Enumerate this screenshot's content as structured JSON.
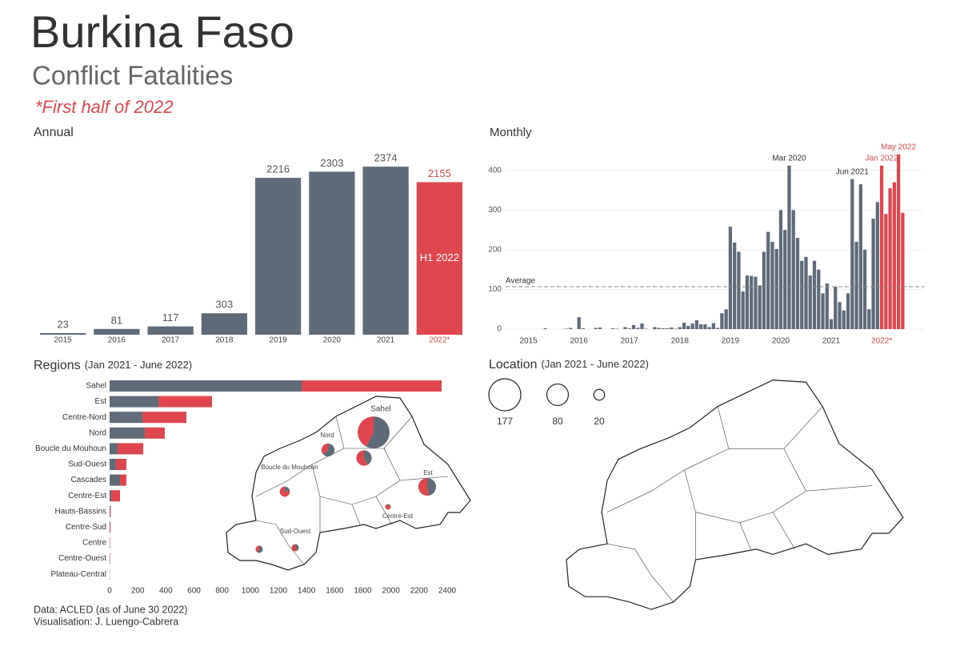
{
  "header": {
    "title": "Burkina Faso",
    "subtitle": "Conflict Fatalities",
    "note": "*First half of 2022"
  },
  "chart_data": [
    {
      "type": "bar",
      "title": "Annual",
      "categories": [
        "2015",
        "2016",
        "2017",
        "2018",
        "2019",
        "2020",
        "2021",
        "2022*"
      ],
      "series": [
        {
          "color": "#5f6b78",
          "values": [
            23,
            81,
            117,
            303,
            2216,
            2303,
            2374,
            null
          ]
        },
        {
          "color": "#e0474c",
          "values": [
            null,
            null,
            null,
            null,
            null,
            null,
            null,
            2155
          ]
        }
      ],
      "annotation": "H1 2022",
      "ylim": [
        0,
        2500
      ]
    },
    {
      "type": "bar",
      "title": "Monthly",
      "categories": [
        "2015",
        null,
        null,
        null,
        null,
        null,
        null,
        null,
        null,
        null,
        null,
        null,
        "2016",
        null,
        null,
        null,
        null,
        null,
        null,
        null,
        null,
        null,
        null,
        null,
        "2017",
        null,
        null,
        null,
        null,
        null,
        null,
        null,
        null,
        null,
        null,
        null,
        "2018",
        null,
        null,
        null,
        null,
        null,
        null,
        null,
        null,
        null,
        null,
        null,
        "2019",
        null,
        null,
        null,
        null,
        null,
        null,
        null,
        null,
        null,
        null,
        null,
        "2020",
        null,
        null,
        null,
        null,
        null,
        null,
        null,
        null,
        null,
        null,
        null,
        "2021",
        null,
        null,
        null,
        null,
        null,
        null,
        null,
        null,
        null,
        null,
        null,
        "2022*",
        null,
        null,
        null,
        null,
        null
      ],
      "series": [
        {
          "color": "#5f6b78",
          "values": [
            0,
            0,
            0,
            0,
            2,
            0,
            0,
            0,
            0,
            1,
            3,
            0,
            30,
            2,
            0,
            0,
            3,
            4,
            0,
            0,
            2,
            1,
            0,
            5,
            2,
            10,
            3,
            14,
            1,
            0,
            5,
            3,
            2,
            2,
            4,
            1,
            5,
            16,
            8,
            14,
            22,
            12,
            12,
            5,
            15,
            3,
            40,
            50,
            258,
            218,
            195,
            95,
            135,
            134,
            132,
            110,
            195,
            245,
            220,
            202,
            300,
            250,
            412,
            300,
            230,
            172,
            182,
            135,
            172,
            150,
            90,
            115,
            25,
            107,
            68,
            47,
            90,
            378,
            220,
            365,
            200,
            50,
            278,
            320,
            null,
            null,
            null,
            null,
            null,
            null
          ]
        },
        {
          "color": "#e0474c",
          "values": [
            null,
            null,
            null,
            null,
            null,
            null,
            null,
            null,
            null,
            null,
            null,
            null,
            null,
            null,
            null,
            null,
            null,
            null,
            null,
            null,
            null,
            null,
            null,
            null,
            null,
            null,
            null,
            null,
            null,
            null,
            null,
            null,
            null,
            null,
            null,
            null,
            null,
            null,
            null,
            null,
            null,
            null,
            null,
            null,
            null,
            null,
            null,
            null,
            null,
            null,
            null,
            null,
            null,
            null,
            null,
            null,
            null,
            null,
            null,
            null,
            null,
            null,
            null,
            null,
            null,
            null,
            null,
            null,
            null,
            null,
            null,
            null,
            null,
            null,
            null,
            null,
            null,
            null,
            null,
            null,
            null,
            null,
            null,
            null,
            412,
            290,
            355,
            370,
            440,
            293
          ]
        }
      ],
      "ylim": [
        0,
        450
      ],
      "yticks": [
        0,
        100,
        200,
        300,
        400
      ],
      "grid": true,
      "reference_line": {
        "label": "Average",
        "value": 107
      },
      "annotations": [
        {
          "text": "Mar 2020",
          "index": 62,
          "color": "#333333"
        },
        {
          "text": "Jun 2021",
          "index": 77,
          "color": "#333333"
        },
        {
          "text": "Jan 2022",
          "index": 84,
          "color": "#e0474c"
        },
        {
          "text": "May 2022",
          "index": 88,
          "color": "#e0474c"
        }
      ]
    },
    {
      "type": "hbar",
      "title": "Regions",
      "subtitle": "(Jan 2021 - June 2022)",
      "categories": [
        "Sahel",
        "Est",
        "Centre-Nord",
        "Nord",
        "Boucle du Mouhoun",
        "Sud-Ouest",
        "Cascades",
        "Centre-Est",
        "Hauts-Bassins",
        "Centre-Sud",
        "Centre",
        "Centre-Ouest",
        "Plateau-Central"
      ],
      "series": [
        {
          "color": "#5f6b78",
          "values": [
            1365,
            347,
            233,
            250,
            57,
            45,
            74,
            11,
            2,
            1,
            0,
            1,
            1
          ]
        },
        {
          "color": "#e0474c",
          "values": [
            995,
            381,
            313,
            142,
            182,
            74,
            45,
            63,
            6,
            6,
            3,
            3,
            1
          ]
        }
      ],
      "xlim": [
        0,
        2400
      ],
      "xticks": [
        0,
        200,
        400,
        600,
        800,
        1000,
        1200,
        1400,
        1600,
        1800,
        2000,
        2200,
        2400
      ]
    },
    {
      "type": "bubble_map",
      "title": "Location",
      "subtitle": "(Jan 2021 - June 2022)",
      "size_legend": [
        177,
        80,
        20
      ]
    }
  ],
  "footer": [
    "Data: ACLED (as of June 30 2022)",
    "Visualisation: J. Luengo-Cabrera"
  ]
}
